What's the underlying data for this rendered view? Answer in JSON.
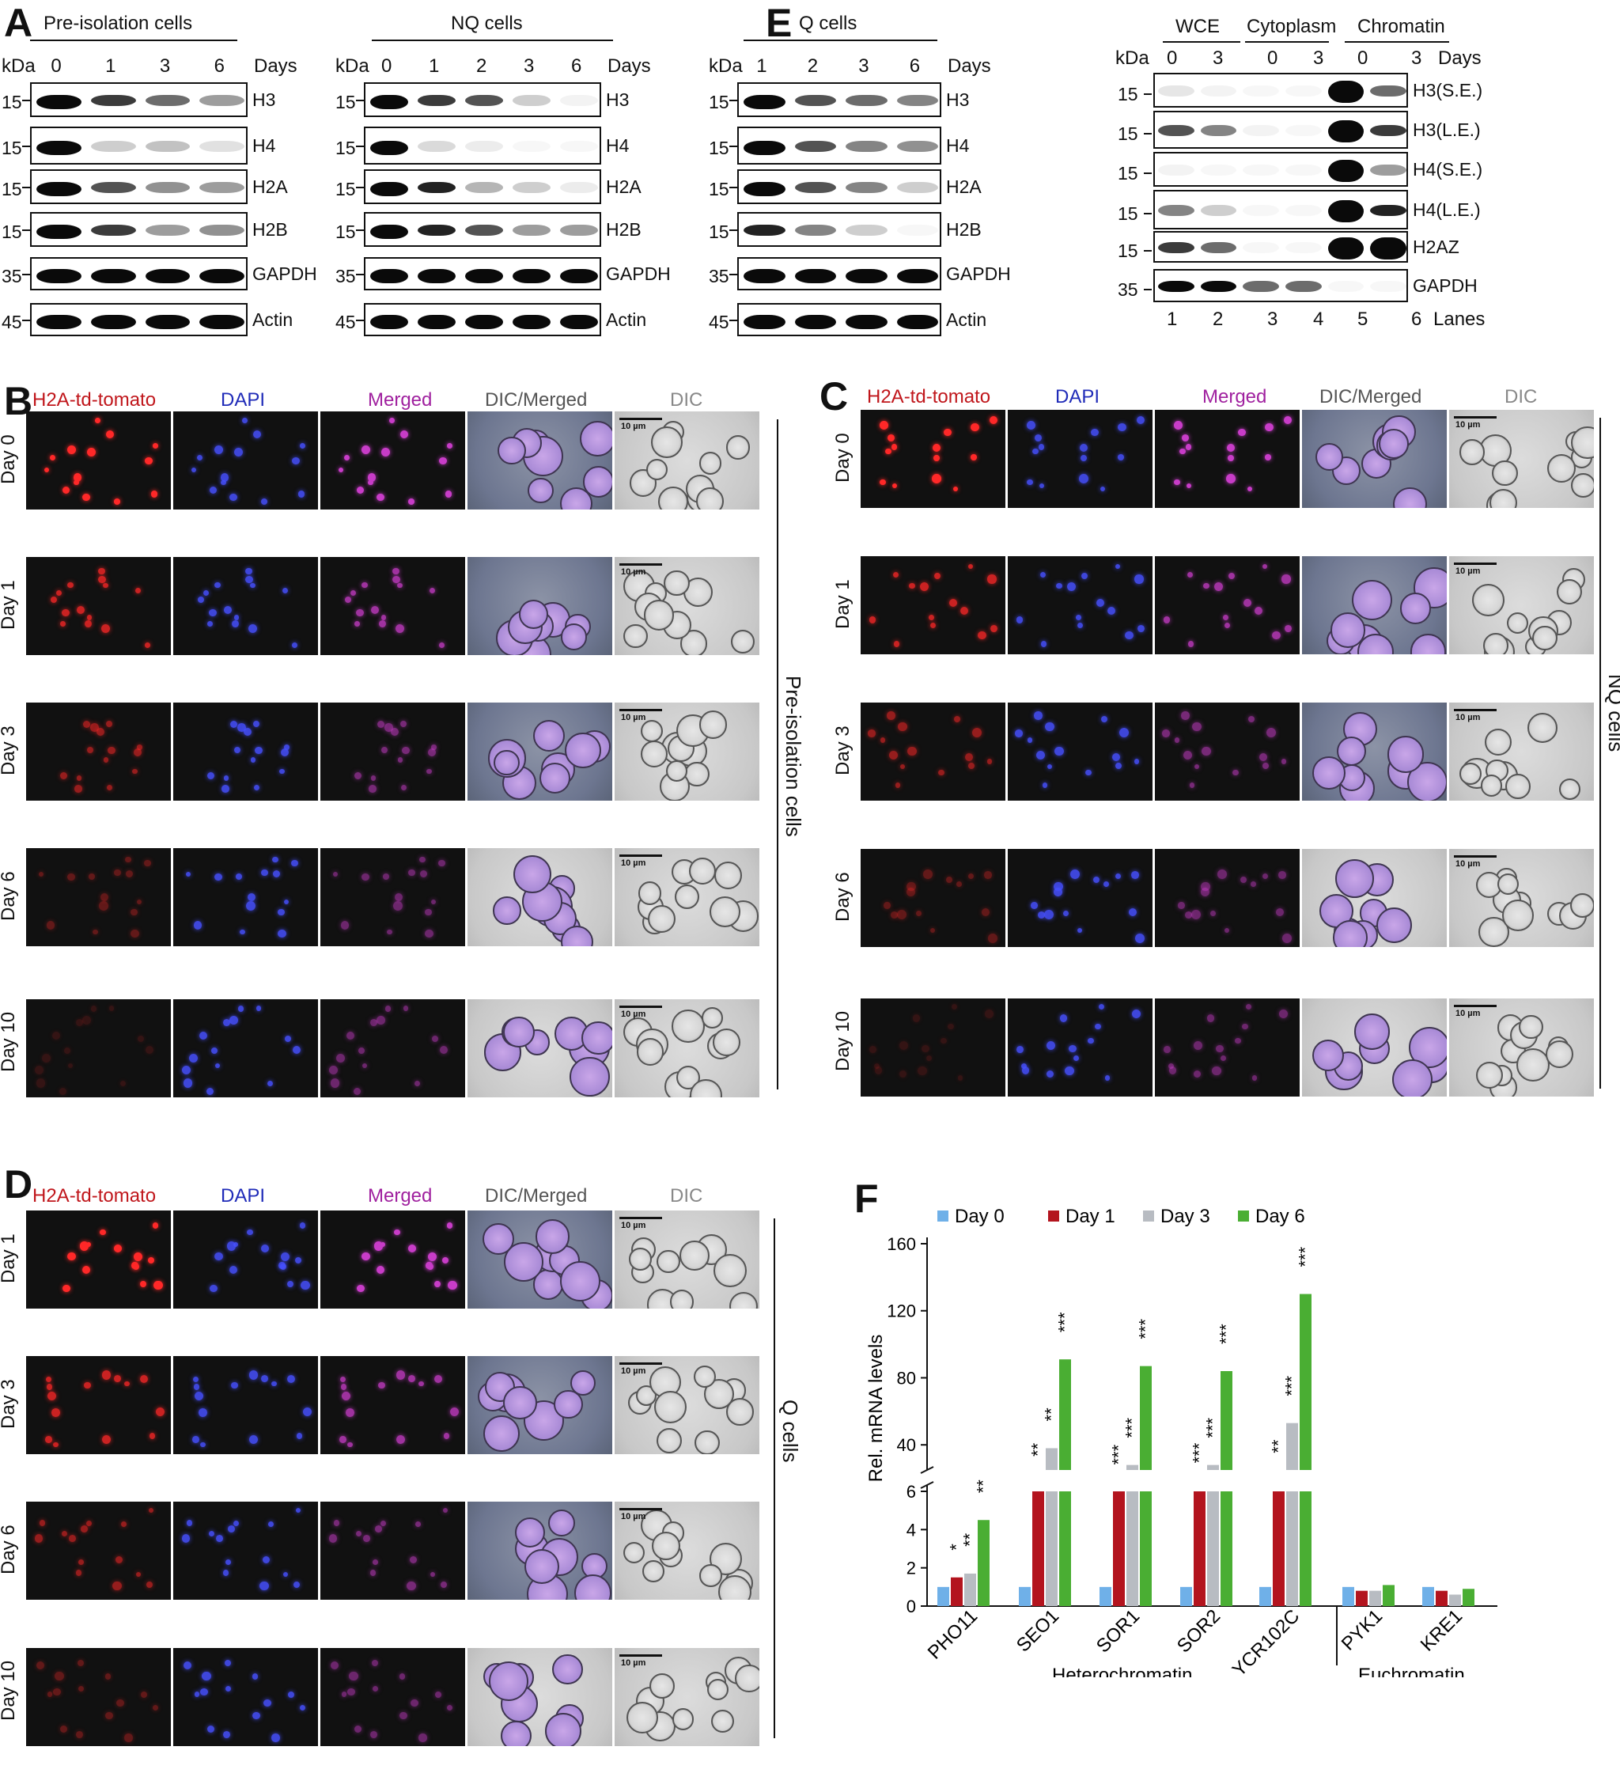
{
  "panels": {
    "A": {
      "label": "A",
      "blots": [
        {
          "title": "Pre-isolation cells",
          "kda_label": "kDa",
          "days_label": "Days",
          "lanes": [
            "0",
            "1",
            "3",
            "6"
          ],
          "rows": [
            {
              "name": "H3",
              "kda": "15"
            },
            {
              "name": "H4",
              "kda": "15"
            },
            {
              "name": "H2A",
              "kda": "15"
            },
            {
              "name": "H2B",
              "kda": "15"
            },
            {
              "name": "GAPDH",
              "kda": "35"
            },
            {
              "name": "Actin",
              "kda": "45"
            }
          ]
        },
        {
          "title": "NQ cells",
          "kda_label": "kDa",
          "days_label": "Days",
          "lanes": [
            "0",
            "1",
            "2",
            "3",
            "6"
          ],
          "rows": [
            {
              "name": "H3",
              "kda": "15"
            },
            {
              "name": "H4",
              "kda": "15"
            },
            {
              "name": "H2A",
              "kda": "15"
            },
            {
              "name": "H2B",
              "kda": "15"
            },
            {
              "name": "GAPDH",
              "kda": "35"
            },
            {
              "name": "Actin",
              "kda": "45"
            }
          ]
        },
        {
          "title": "Q cells",
          "kda_label": "kDa",
          "days_label": "Days",
          "lanes": [
            "1",
            "2",
            "3",
            "6"
          ],
          "rows": [
            {
              "name": "H3",
              "kda": "15"
            },
            {
              "name": "H4",
              "kda": "15"
            },
            {
              "name": "H2A",
              "kda": "15"
            },
            {
              "name": "H2B",
              "kda": "15"
            },
            {
              "name": "GAPDH",
              "kda": "35"
            },
            {
              "name": "Actin",
              "kda": "45"
            }
          ]
        }
      ]
    },
    "E": {
      "label": "E",
      "groups": [
        "WCE",
        "Cytoplasm",
        "Chromatin"
      ],
      "kda_label": "kDa",
      "days_label": "Days",
      "lanes_days": [
        "0",
        "3",
        "0",
        "3",
        "0",
        "3"
      ],
      "lanes_label": "Lanes",
      "lane_numbers": [
        "1",
        "2",
        "3",
        "4",
        "5",
        "6"
      ],
      "rows": [
        {
          "name": "H3(S.E.)",
          "kda": "15"
        },
        {
          "name": "H3(L.E.)",
          "kda": "15"
        },
        {
          "name": "H4(S.E.)",
          "kda": "15"
        },
        {
          "name": "H4(L.E.)",
          "kda": "15"
        },
        {
          "name": "H2AZ",
          "kda": "15"
        },
        {
          "name": "GAPDH",
          "kda": "35"
        }
      ]
    },
    "B": {
      "label": "B",
      "side": "Pre-isolation cells",
      "rows": [
        "Day 0",
        "Day 1",
        "Day 3",
        "Day 6",
        "Day 10"
      ]
    },
    "C": {
      "label": "C",
      "side": "NQ cells",
      "rows": [
        "Day 0",
        "Day 1",
        "Day 3",
        "Day 6",
        "Day 10"
      ]
    },
    "D": {
      "label": "D",
      "side": "Q cells",
      "rows": [
        "Day 1",
        "Day 3",
        "Day 6",
        "Day 10"
      ]
    },
    "image_columns": [
      "H2A-td-tomato",
      "DAPI",
      "Merged",
      "DIC/Merged",
      "DIC"
    ],
    "column_colors": [
      "#c0161b",
      "#1f2bb8",
      "#a0219f",
      "#555555",
      "#888888"
    ],
    "scale_text": "10 µm"
  },
  "chart_data": {
    "type": "bar",
    "label": "F",
    "legend": [
      "Day 0",
      "Day 1",
      "Day 3",
      "Day 6"
    ],
    "legend_position": "top",
    "series_colors": [
      "#6fb0e8",
      "#b3141e",
      "#b8bcc2",
      "#4aae33"
    ],
    "ylabel": "Rel. mRNA levels",
    "categories": [
      "PHO11",
      "SEO1",
      "SOR1",
      "SOR2",
      "YCR102C",
      "PYK1",
      "KRE1"
    ],
    "series": [
      {
        "name": "Day 0",
        "values": [
          1,
          1,
          1,
          1,
          1,
          1,
          1
        ]
      },
      {
        "name": "Day 1",
        "values": [
          1.5,
          17,
          12,
          13,
          19,
          0.8,
          0.8
        ]
      },
      {
        "name": "Day 3",
        "values": [
          1.7,
          38,
          28,
          28,
          53,
          0.8,
          0.6
        ]
      },
      {
        "name": "Day 6",
        "values": [
          4.5,
          91,
          87,
          84,
          130,
          1.1,
          0.9
        ]
      }
    ],
    "significance": [
      [
        "",
        "*",
        "**",
        "**"
      ],
      [
        "",
        "**",
        "**",
        "***"
      ],
      [
        "",
        "***",
        "***",
        "***"
      ],
      [
        "",
        "***",
        "***",
        "***"
      ],
      [
        "",
        "**",
        "***",
        "***"
      ],
      [
        "",
        "",
        "",
        ""
      ],
      [
        "",
        "",
        "",
        ""
      ]
    ],
    "y_ticks_lower": [
      "0",
      "2",
      "4",
      "6"
    ],
    "y_ticks_upper": [
      "40",
      "80",
      "120",
      "160"
    ],
    "ylim_lower": [
      0,
      6
    ],
    "ylim_upper": [
      25,
      160
    ],
    "group_labels": [
      "Heterochromatin",
      "Euchromatin"
    ]
  }
}
